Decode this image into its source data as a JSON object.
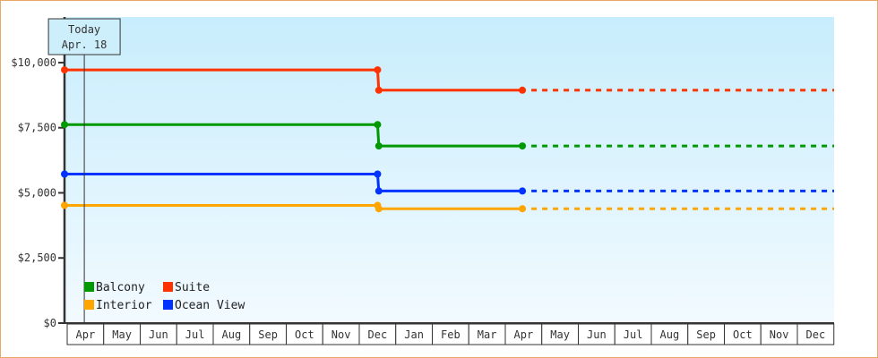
{
  "chart_data": {
    "type": "line",
    "step": true,
    "ylim": [
      0,
      11750
    ],
    "yticks": [
      0,
      2500,
      5000,
      7500,
      10000
    ],
    "ytick_labels": [
      "$0",
      "$2,500",
      "$5,000",
      "$7,500",
      "$10,000"
    ],
    "categories": [
      "Apr",
      "May",
      "Jun",
      "Jul",
      "Aug",
      "Sep",
      "Oct",
      "Nov",
      "Dec",
      "Jan",
      "Feb",
      "Mar",
      "Apr",
      "May",
      "Jun",
      "Jul",
      "Aug",
      "Sep",
      "Oct",
      "Nov",
      "Dec"
    ],
    "today": {
      "title": "Today",
      "date_label": "Apr. 18",
      "x": "Apr 18"
    },
    "legend": {
      "placement": "bottom-left"
    },
    "grid": false,
    "series": [
      {
        "name": "Balcony",
        "color": "#009900",
        "points": [
          {
            "x": "Apr 1",
            "y": 7620
          },
          {
            "x": "Dec 19",
            "y": 7620
          },
          {
            "x": "Dec 20",
            "y": 6800
          },
          {
            "x": "Apr 18",
            "y": 6800
          }
        ],
        "projected_to": "Dec 31"
      },
      {
        "name": "Suite",
        "color": "#ff3300",
        "points": [
          {
            "x": "Apr 1",
            "y": 9720
          },
          {
            "x": "Dec 19",
            "y": 9720
          },
          {
            "x": "Dec 20",
            "y": 8940
          },
          {
            "x": "Apr 18",
            "y": 8940
          }
        ],
        "projected_to": "Dec 31"
      },
      {
        "name": "Interior",
        "color": "#ffa500",
        "points": [
          {
            "x": "Apr 1",
            "y": 4520
          },
          {
            "x": "Dec 19",
            "y": 4520
          },
          {
            "x": "Dec 20",
            "y": 4390
          },
          {
            "x": "Apr 18",
            "y": 4390
          }
        ],
        "projected_to": "Dec 31"
      },
      {
        "name": "Ocean View",
        "color": "#0033ff",
        "points": [
          {
            "x": "Apr 1",
            "y": 5720
          },
          {
            "x": "Dec 19",
            "y": 5720
          },
          {
            "x": "Dec 20",
            "y": 5070
          },
          {
            "x": "Apr 18",
            "y": 5070
          }
        ],
        "projected_to": "Dec 31"
      }
    ]
  }
}
